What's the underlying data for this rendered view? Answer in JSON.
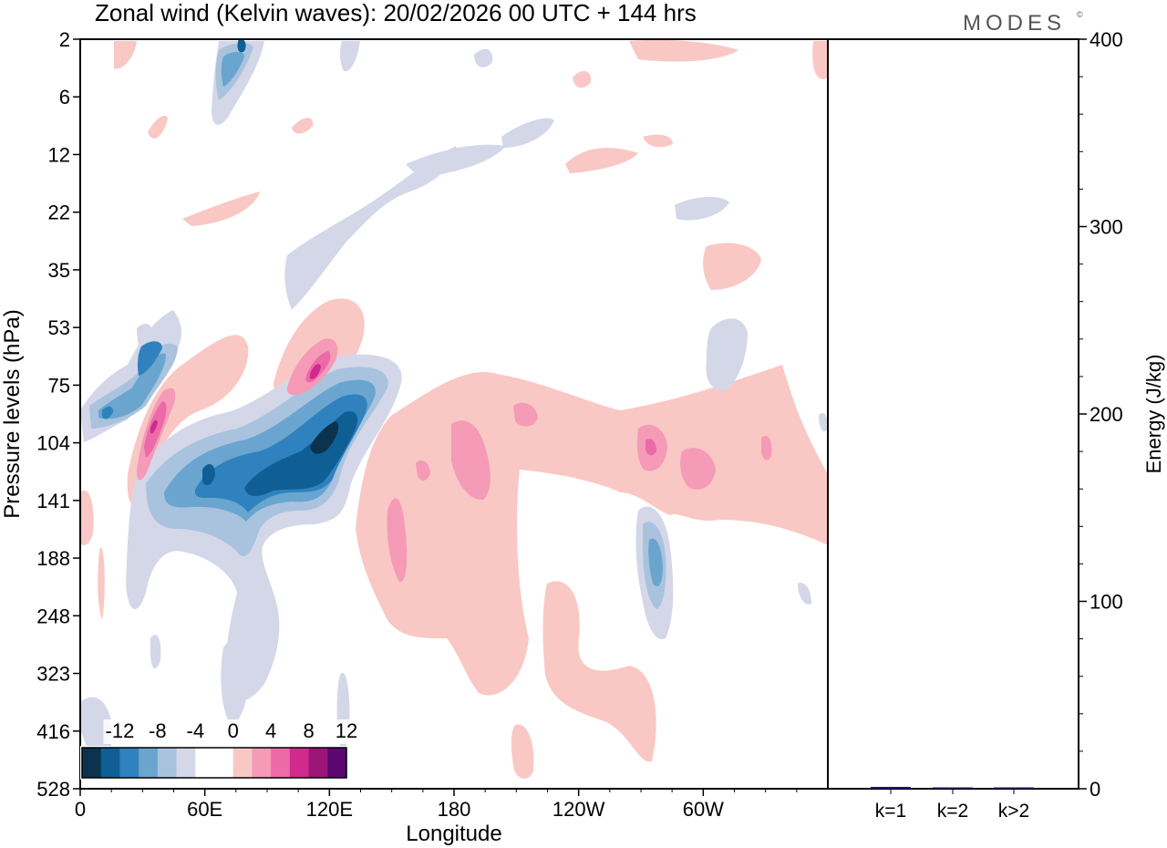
{
  "chart_data": [
    {
      "type": "heatmap",
      "title": "Zonal wind (Kelvin waves):  20/02/2026  00 UTC  + 144 hrs",
      "brand": "MODES",
      "brand_mark": "©",
      "xlabel": "Longitude",
      "ylabel": "Pressure levels (hPa)",
      "x_ticks": [
        {
          "lon": 0,
          "label": "0"
        },
        {
          "lon": 60,
          "label": "60E"
        },
        {
          "lon": 120,
          "label": "120E"
        },
        {
          "lon": 180,
          "label": "180"
        },
        {
          "lon": 240,
          "label": "120W"
        },
        {
          "lon": 300,
          "label": "60W"
        }
      ],
      "xlim": [
        0,
        360
      ],
      "y_levels": [
        "2",
        "6",
        "12",
        "22",
        "35",
        "53",
        "75",
        "104",
        "141",
        "188",
        "248",
        "323",
        "416",
        "528"
      ],
      "colorbar": {
        "labels": [
          "-12",
          "-8",
          "-4",
          "0",
          "4",
          "8",
          "12"
        ],
        "colors": [
          "#0b3350",
          "#0f5f95",
          "#2f82bd",
          "#6aa5cf",
          "#a9c3de",
          "#d4d7e8",
          "#ffffff",
          "#ffffff",
          "#f9c8c4",
          "#f59ab7",
          "#ec6aa8",
          "#d02a8c",
          "#9b1577",
          "#5a0870"
        ]
      },
      "features": [
        {
          "sign": "negative",
          "max_abs": 14,
          "lon": 108,
          "level": "104"
        },
        {
          "sign": "negative",
          "max_abs": 10,
          "lon": 60,
          "level": "141"
        },
        {
          "sign": "negative",
          "max_abs": 8,
          "lon": 35,
          "level": "70"
        },
        {
          "sign": "negative",
          "max_abs": 6,
          "lon": 280,
          "level": "188"
        },
        {
          "sign": "positive",
          "max_abs": 12,
          "lon": 33,
          "level": "100"
        },
        {
          "sign": "positive",
          "max_abs": 10,
          "lon": 112,
          "level": "70"
        },
        {
          "sign": "positive",
          "max_abs": 8,
          "lon": 150,
          "level": "170"
        },
        {
          "sign": "positive",
          "max_abs": 8,
          "lon": 276,
          "level": "100"
        },
        {
          "sign": "positive",
          "max_abs": 6,
          "lon": 295,
          "level": "120"
        },
        {
          "sign": "positive",
          "max_abs": 4,
          "lon": 245,
          "level": "320"
        }
      ]
    },
    {
      "type": "bar",
      "ylabel": "Energy (J/kg)",
      "ylim": [
        0,
        400
      ],
      "yticks": [
        0,
        100,
        200,
        300,
        400
      ],
      "categories": [
        "k=1",
        "k=2",
        "k>2"
      ],
      "values": [
        1.0,
        0.5,
        0.7
      ],
      "bar_color": "#1a1a6a"
    }
  ]
}
